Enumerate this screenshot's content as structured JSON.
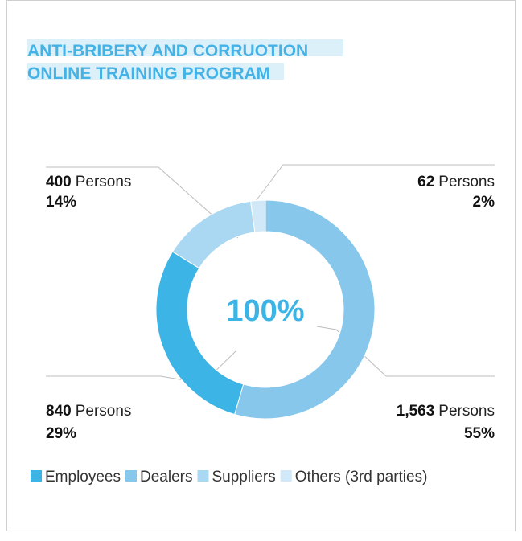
{
  "chart_data": {
    "type": "donut",
    "title": [
      "ANTI-BRIBERY AND CORRUOTION",
      "ONLINE TRAINING PROGRAM"
    ],
    "categories": [
      "Employees",
      "Dealers",
      "Suppliers",
      "Others (3rd parties)"
    ],
    "values": [
      840,
      1563,
      400,
      62
    ],
    "value_labels": [
      "840",
      "1,563",
      "400",
      "62"
    ],
    "unit_label": "Persons",
    "percents": [
      29,
      55,
      14,
      2
    ],
    "percent_labels": [
      "29%",
      "55%",
      "14%",
      "2%"
    ],
    "colors": [
      "#3cb4e5",
      "#86c7eb",
      "#aad7f1",
      "#d0e8f7"
    ],
    "center_label": "100%",
    "legend": "bottom"
  }
}
